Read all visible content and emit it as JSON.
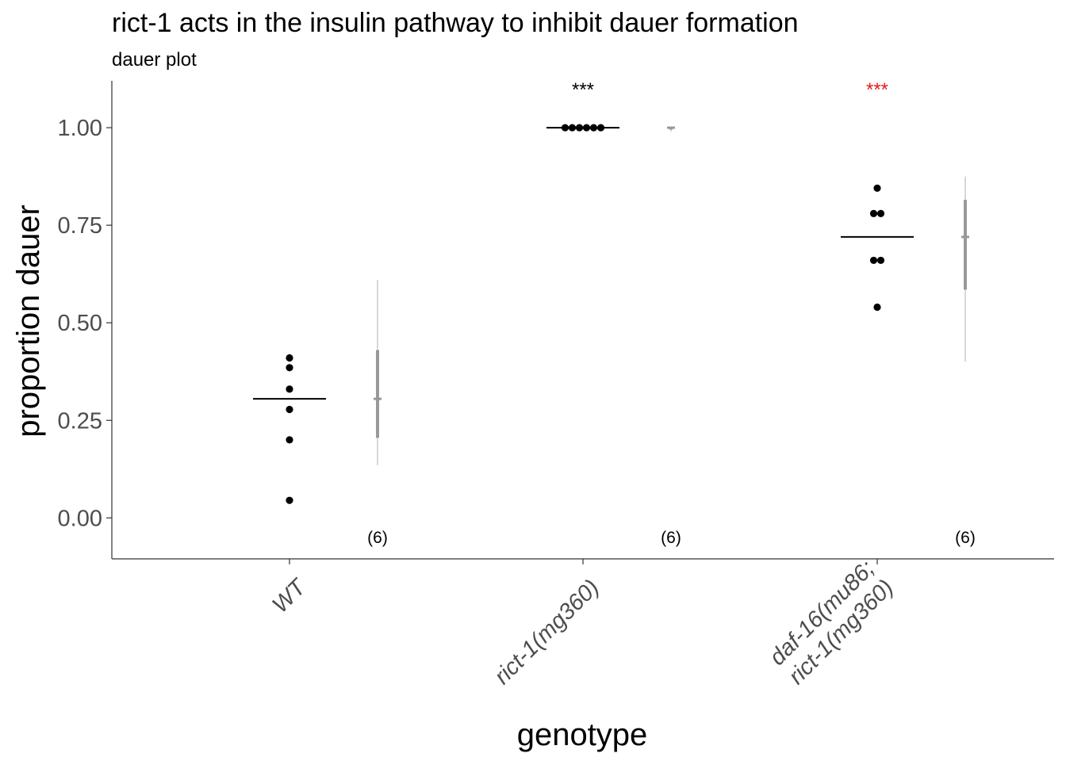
{
  "chart_data": {
    "type": "scatter",
    "title": "rict-1 acts in the insulin pathway to inhibit dauer formation",
    "subtitle": "dauer plot",
    "xlabel": "genotype",
    "ylabel": "proportion dauer",
    "ylim": [
      -0.105,
      1.12
    ],
    "yticks": [
      0,
      0.25,
      0.5,
      0.75,
      1.0
    ],
    "ytick_labels": [
      "0.00",
      "0.25",
      "0.50",
      "0.75",
      "1.00"
    ],
    "grid": false,
    "groups": [
      {
        "label_lines": [
          "WT"
        ],
        "points": [
          0.045,
          0.2,
          0.278,
          0.33,
          0.385,
          0.41
        ],
        "mean": 0.305,
        "ci_inner": [
          0.205,
          0.43
        ],
        "ci_outer": [
          0.135,
          0.61
        ],
        "n_label": "(6)",
        "sig": "",
        "sig_color": "#000000"
      },
      {
        "label_lines": [
          "rict-1(mg360)"
        ],
        "points": [
          1.0,
          1.0,
          1.0,
          1.0,
          1.0,
          1.0
        ],
        "mean": 1.0,
        "ci_inner": [
          0.995,
          1.0
        ],
        "ci_outer": [
          0.99,
          1.0
        ],
        "n_label": "(6)",
        "sig": "***",
        "sig_color": "#000000"
      },
      {
        "label_lines": [
          "daf-16(mu86;",
          "rict-1(mg360)"
        ],
        "points": [
          0.54,
          0.66,
          0.66,
          0.78,
          0.78,
          0.845
        ],
        "mean": 0.72,
        "ci_inner": [
          0.585,
          0.815
        ],
        "ci_outer": [
          0.4,
          0.875
        ],
        "n_label": "(6)",
        "sig": "***",
        "sig_color": "#e41a1c"
      }
    ],
    "colors": {
      "points": "#000000",
      "mean_line": "#000000",
      "ci": "#999999",
      "ci_outer": "#cccccc",
      "axis": "#333333",
      "tick_text": "#4d4d4d"
    }
  }
}
